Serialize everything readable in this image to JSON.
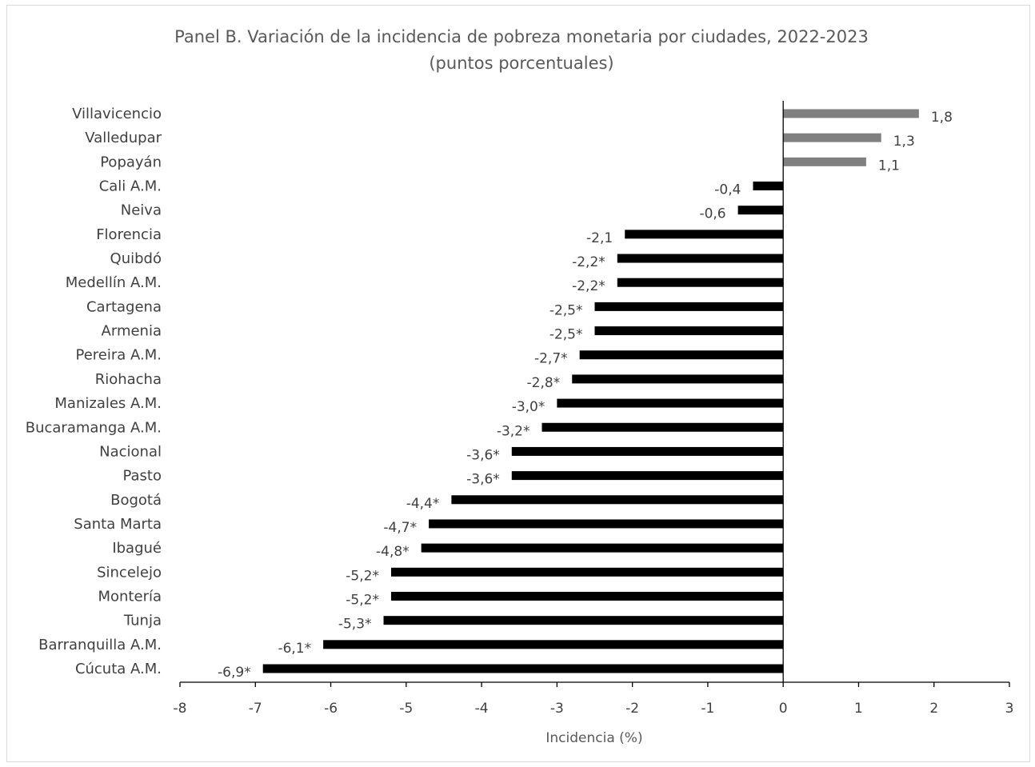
{
  "chart_data": {
    "type": "bar",
    "orientation": "horizontal",
    "title": "Panel B. Variación de la incidencia de pobreza monetaria por ciudades, 2022-2023",
    "subtitle": "(puntos porcentuales)",
    "xlabel": "Incidencia (%)",
    "ylabel": "",
    "xlim": [
      -8,
      3
    ],
    "xticks": [
      "-8",
      "-7",
      "-6",
      "-5",
      "-4",
      "-3",
      "-2",
      "-1",
      "0",
      "1",
      "2",
      "3"
    ],
    "grid": false,
    "legend": "none",
    "colors": {
      "positive": "#808080",
      "negative": "#000000"
    },
    "categories": [
      "Villavicencio",
      "Valledupar",
      "Popayán",
      "Cali A.M.",
      "Neiva",
      "Florencia",
      "Quibdó",
      "Medellín A.M.",
      "Cartagena",
      "Armenia",
      "Pereira A.M.",
      "Riohacha",
      "Manizales A.M.",
      "Bucaramanga A.M.",
      "Nacional",
      "Pasto",
      "Bogotá",
      "Santa Marta",
      "Ibagué",
      "Sincelejo",
      "Montería",
      "Tunja",
      "Barranquilla A.M.",
      "Cúcuta A.M."
    ],
    "values": [
      1.8,
      1.3,
      1.1,
      -0.4,
      -0.6,
      -2.1,
      -2.2,
      -2.2,
      -2.5,
      -2.5,
      -2.7,
      -2.8,
      -3.0,
      -3.2,
      -3.6,
      -3.6,
      -4.4,
      -4.7,
      -4.8,
      -5.2,
      -5.2,
      -5.3,
      -6.1,
      -6.9
    ],
    "data_labels": [
      "1,8",
      "1,3",
      "1,1",
      "-0,4",
      "-0,6",
      "-2,1",
      "-2,2*",
      "-2,2*",
      "-2,5*",
      "-2,5*",
      "-2,7*",
      "-2,8*",
      "-3,0*",
      "-3,2*",
      "-3,6*",
      "-3,6*",
      "-4,4*",
      "-4,7*",
      "-4,8*",
      "-5,2*",
      "-5,2*",
      "-5,3*",
      "-6,1*",
      "-6,9*"
    ]
  }
}
